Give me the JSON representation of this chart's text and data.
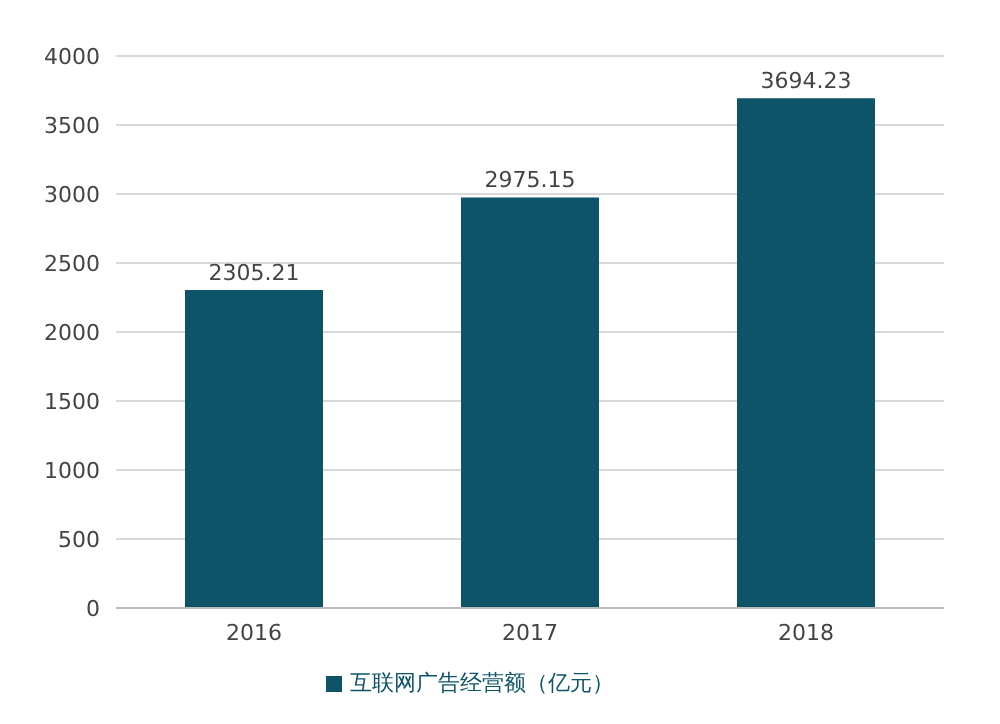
{
  "chart_data": {
    "type": "bar",
    "categories": [
      "2016",
      "2017",
      "2018"
    ],
    "series": [
      {
        "name": "互联网广告经营额（亿元）",
        "color": "#0d5468",
        "values": [
          2305.21,
          2975.15,
          3694.23
        ]
      }
    ],
    "ylim": [
      0,
      4000
    ],
    "yticks": [
      0,
      500,
      1000,
      1500,
      2000,
      2500,
      3000,
      3500,
      4000
    ],
    "grid": "y",
    "legend": "bottom",
    "data_labels": true
  }
}
